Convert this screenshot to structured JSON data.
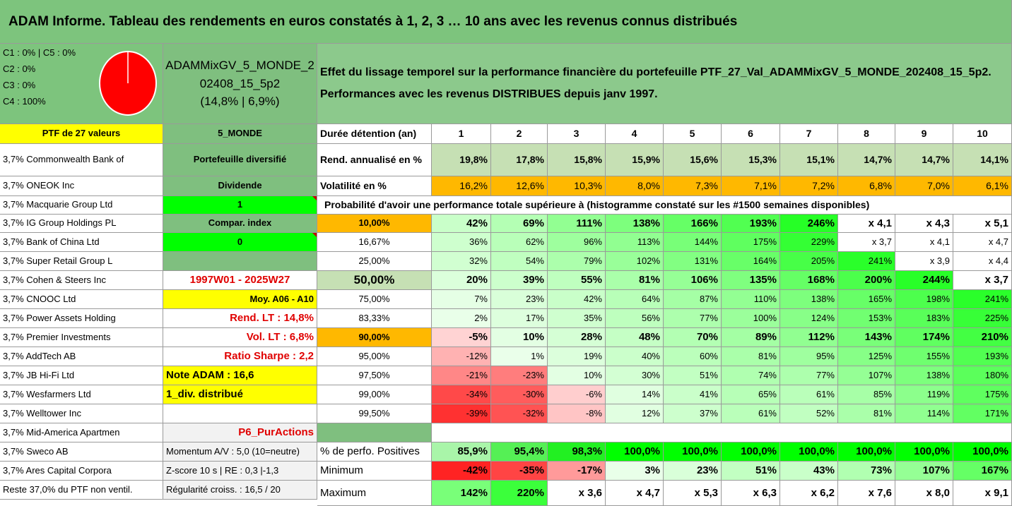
{
  "title": "ADAM Informe. Tableau des rendements en euros constatés à 1, 2, 3 … 10 ans avec les revenus connus distribués",
  "allocation": {
    "lines": [
      "C1 : 0% | C5 : 0%",
      "C2 : 0%",
      "C3 : 0%",
      "C4 : 100%"
    ],
    "pie_color": "#ff0000"
  },
  "portfolio_box": {
    "name_line1": "ADAMMixGV_5_MONDE_2",
    "name_line2": "02408_15_5p2",
    "stats": "(14,8% | 6,9%)"
  },
  "description": {
    "line1": "Effet du lissage temporel sur la performance financière du portefeuille PTF_27_Val_ADAMMixGV_5_MONDE_202408_15_5p2.",
    "line2": "Performances avec les revenus DISTRIBUES depuis janv 1997."
  },
  "holdings": [
    "PTF de 27 valeurs",
    "3,7% Commonwealth Bank of",
    "3,7% ONEOK Inc",
    "3,7% Macquarie Group Ltd",
    "3,7% IG Group Holdings PL",
    "3,7% Bank of China Ltd",
    "3,7% Super Retail Group L",
    "3,7% Cohen & Steers Inc",
    "3,7% CNOOC Ltd",
    "3,7% Power Assets Holding",
    "3,7% Premier Investments",
    "3,7% AddTech AB",
    "3,7% JB Hi-Fi Ltd",
    "3,7% Wesfarmers Ltd",
    "3,7% Welltower Inc",
    "3,7% Mid-America Apartmen",
    "3,7% Sweco AB",
    "3,7% Ares Capital Corpora",
    "Reste 37,0% du PTF non ventil."
  ],
  "info_column": [
    "5_MONDE",
    "Portefeuille diversifié",
    "Dividende",
    "1",
    "Compar. index",
    "0",
    "",
    "1997W01 - 2025W27",
    "Moy. A06 - A10",
    "Rend. LT : 14,8%",
    "Vol. LT : 6,8%",
    "Ratio Sharpe : 2,2",
    "Note ADAM : 16,6",
    "1_div. distribué",
    "",
    "P6_PurActions",
    "Momentum A/V : 5,0 (10=neutre)",
    "Z-score 10 s | RE : 0,3 |-1,3",
    "Régularité croiss. : 16,5 / 20"
  ],
  "years_row": {
    "label": "Durée détention (an)",
    "years": [
      "1",
      "2",
      "3",
      "4",
      "5",
      "6",
      "7",
      "8",
      "9",
      "10"
    ]
  },
  "rend_row": {
    "label": "Rend. annualisé en %",
    "values": [
      "19,8%",
      "17,8%",
      "15,8%",
      "15,9%",
      "15,6%",
      "15,3%",
      "15,1%",
      "14,7%",
      "14,7%",
      "14,1%"
    ]
  },
  "vol_row": {
    "label": "Volatilité en %",
    "values": [
      "16,2%",
      "12,6%",
      "10,3%",
      "8,0%",
      "7,3%",
      "7,1%",
      "7,2%",
      "6,8%",
      "7,0%",
      "6,1%"
    ]
  },
  "probability_header": "Probabilité d'avoir une performance totale supérieure à (histogramme constaté sur les #1500 semaines disponibles)",
  "probability_rows": [
    {
      "p": "10,00%",
      "values": [
        "42%",
        "69%",
        "111%",
        "138%",
        "166%",
        "193%",
        "246%",
        "x 4,1",
        "x 4,3",
        "x 5,1"
      ]
    },
    {
      "p": "16,67%",
      "values": [
        "36%",
        "62%",
        "96%",
        "113%",
        "144%",
        "175%",
        "229%",
        "x 3,7",
        "x 4,1",
        "x 4,7"
      ]
    },
    {
      "p": "25,00%",
      "values": [
        "32%",
        "54%",
        "79%",
        "102%",
        "131%",
        "164%",
        "205%",
        "241%",
        "x 3,9",
        "x 4,4"
      ]
    },
    {
      "p": "50,00%",
      "values": [
        "20%",
        "39%",
        "55%",
        "81%",
        "106%",
        "135%",
        "168%",
        "200%",
        "244%",
        "x 3,7"
      ]
    },
    {
      "p": "75,00%",
      "values": [
        "7%",
        "23%",
        "42%",
        "64%",
        "87%",
        "110%",
        "138%",
        "165%",
        "198%",
        "241%"
      ]
    },
    {
      "p": "83,33%",
      "values": [
        "2%",
        "17%",
        "35%",
        "56%",
        "77%",
        "100%",
        "124%",
        "153%",
        "183%",
        "225%"
      ]
    },
    {
      "p": "90,00%",
      "values": [
        "-5%",
        "10%",
        "28%",
        "48%",
        "70%",
        "89%",
        "112%",
        "143%",
        "174%",
        "210%"
      ]
    },
    {
      "p": "95,00%",
      "values": [
        "-12%",
        "1%",
        "19%",
        "40%",
        "60%",
        "81%",
        "95%",
        "125%",
        "155%",
        "193%"
      ]
    },
    {
      "p": "97,50%",
      "values": [
        "-21%",
        "-23%",
        "10%",
        "30%",
        "51%",
        "74%",
        "77%",
        "107%",
        "138%",
        "180%"
      ]
    },
    {
      "p": "99,00%",
      "values": [
        "-34%",
        "-30%",
        "-6%",
        "14%",
        "41%",
        "65%",
        "61%",
        "85%",
        "119%",
        "175%"
      ]
    },
    {
      "p": "99,50%",
      "values": [
        "-39%",
        "-32%",
        "-8%",
        "12%",
        "37%",
        "61%",
        "52%",
        "81%",
        "114%",
        "171%"
      ]
    }
  ],
  "summary_rows": [
    {
      "label": "% de perfo. Positives",
      "values": [
        "85,9%",
        "95,4%",
        "98,3%",
        "100,0%",
        "100,0%",
        "100,0%",
        "100,0%",
        "100,0%",
        "100,0%",
        "100,0%"
      ]
    },
    {
      "label": "Minimum",
      "values": [
        "-42%",
        "-35%",
        "-17%",
        "3%",
        "23%",
        "51%",
        "43%",
        "73%",
        "107%",
        "167%"
      ]
    },
    {
      "label": "Maximum",
      "values": [
        "142%",
        "220%",
        "x 3,6",
        "x 4,7",
        "x 5,3",
        "x 6,3",
        "x 6,2",
        "x 7,6",
        "x 8,0",
        "x 9,1"
      ]
    }
  ],
  "colors": {
    "title_band": "#7dc47d",
    "header_green": "#8cc98c",
    "mid_green": "#7fbf7f",
    "bright_green": "#00ff00",
    "yellow": "#ffff00",
    "orange": "#ffb800",
    "light_green": "#c6e0b4",
    "gray": "#f2f2f2",
    "red": "#e00000"
  }
}
